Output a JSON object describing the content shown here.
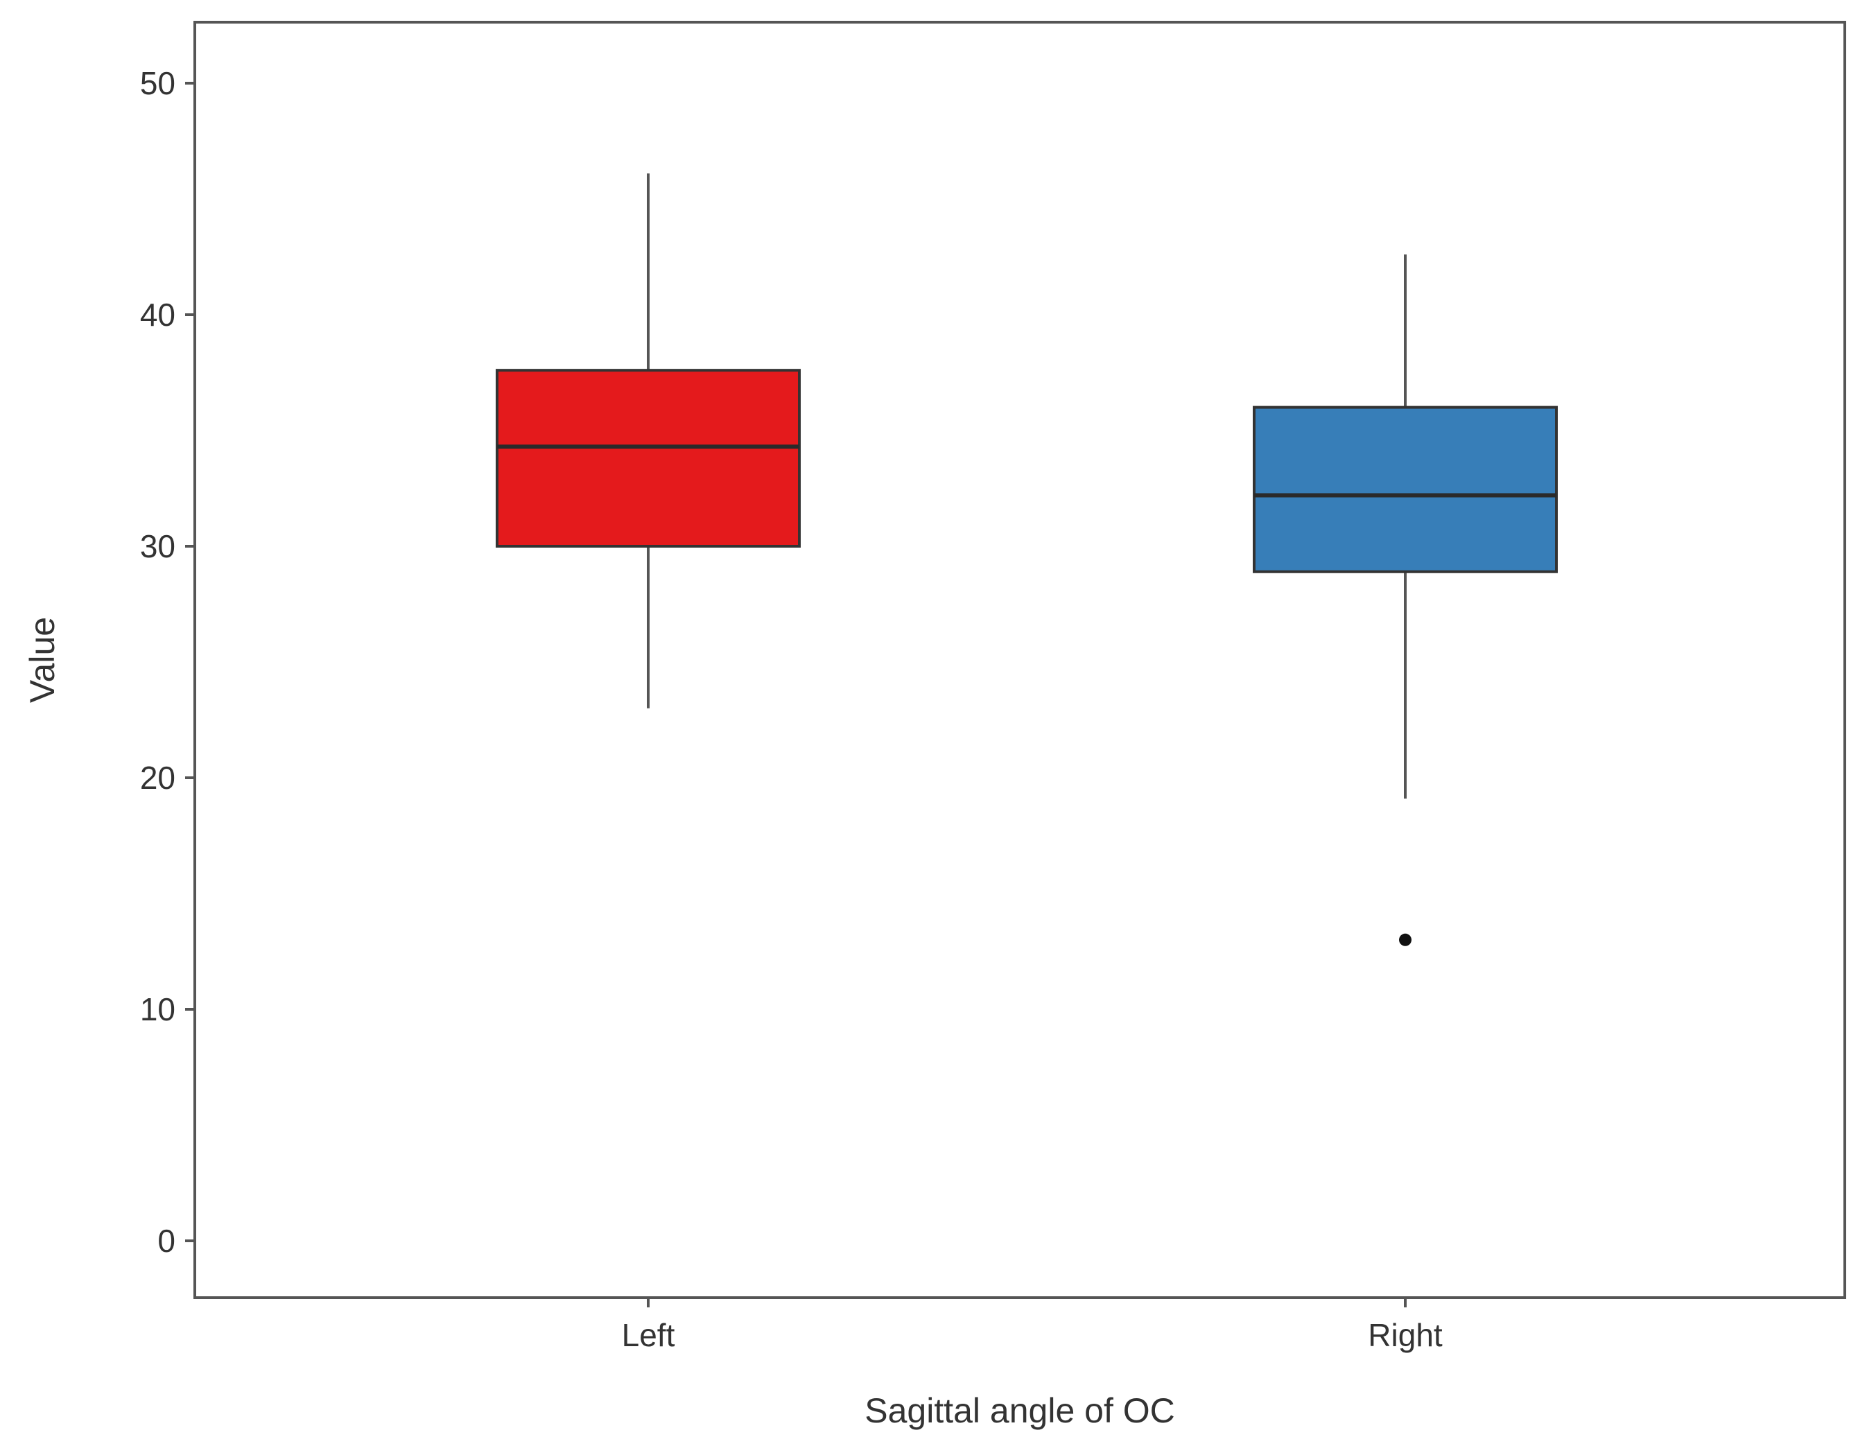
{
  "chart_data": {
    "type": "box",
    "xlabel": "Sagittal angle of OC",
    "ylabel": "Value",
    "ylim": [
      -2.5,
      52.5
    ],
    "yticks": [
      0,
      10,
      20,
      30,
      40,
      50
    ],
    "grid": false,
    "legend": "none",
    "categories": [
      "Left",
      "Right"
    ],
    "boxes": [
      {
        "category": "Left",
        "color": "#e41a1c",
        "whisker_low": 23,
        "q1": 30,
        "median": 34.3,
        "q3": 37.6,
        "whisker_high": 46.1,
        "outliers": []
      },
      {
        "category": "Right",
        "color": "#377eb8",
        "whisker_low": 19.1,
        "q1": 28.9,
        "median": 32.2,
        "q3": 36,
        "whisker_high": 42.6,
        "outliers": [
          13
        ]
      }
    ]
  }
}
